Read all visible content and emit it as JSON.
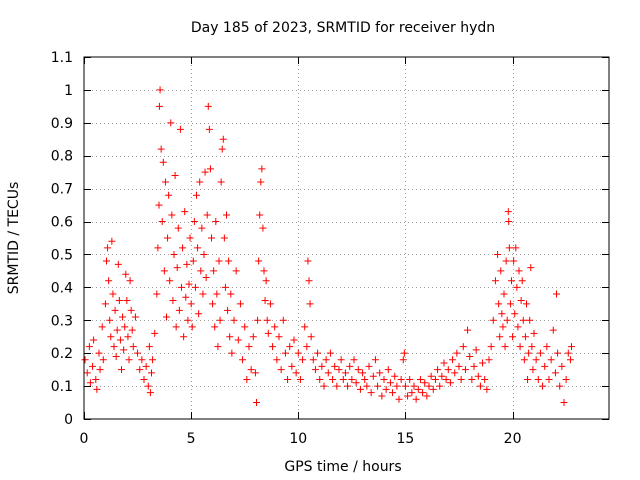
{
  "chart_data": {
    "type": "scatter",
    "title": "Day 185 of 2023, SRMTID for receiver hydn",
    "xlabel": "GPS time / hours",
    "ylabel": "SRMTID / TECUs",
    "xlim": [
      0,
      24.5
    ],
    "ylim": [
      0,
      1.1
    ],
    "xticks": [
      0,
      5,
      10,
      15,
      20
    ],
    "xtick_labels": [
      "0",
      "5",
      "10",
      "15",
      "20"
    ],
    "yticks": [
      0,
      0.1,
      0.2,
      0.3,
      0.4,
      0.5,
      0.6,
      0.7,
      0.8,
      0.9,
      1,
      1.1
    ],
    "ytick_labels": [
      "0",
      "0.1",
      "0.2",
      "0.3",
      "0.4",
      "0.5",
      "0.6",
      "0.7",
      "0.8",
      "0.9",
      "1",
      "1.1"
    ],
    "grid": true,
    "marker": "plus",
    "color": "#ff0000",
    "series": [
      {
        "name": "SRMTID",
        "points": [
          [
            0.05,
            0.18
          ],
          [
            0.15,
            0.14
          ],
          [
            0.25,
            0.22
          ],
          [
            0.3,
            0.11
          ],
          [
            0.4,
            0.16
          ],
          [
            0.45,
            0.24
          ],
          [
            0.55,
            0.12
          ],
          [
            0.6,
            0.09
          ],
          [
            0.7,
            0.2
          ],
          [
            0.75,
            0.15
          ],
          [
            0.85,
            0.28
          ],
          [
            0.9,
            0.18
          ],
          [
            1.0,
            0.35
          ],
          [
            1.05,
            0.48
          ],
          [
            1.1,
            0.52
          ],
          [
            1.15,
            0.42
          ],
          [
            1.2,
            0.3
          ],
          [
            1.25,
            0.25
          ],
          [
            1.3,
            0.54
          ],
          [
            1.35,
            0.38
          ],
          [
            1.4,
            0.22
          ],
          [
            1.45,
            0.33
          ],
          [
            1.5,
            0.19
          ],
          [
            1.55,
            0.27
          ],
          [
            1.6,
            0.47
          ],
          [
            1.65,
            0.36
          ],
          [
            1.7,
            0.24
          ],
          [
            1.75,
            0.15
          ],
          [
            1.8,
            0.31
          ],
          [
            1.85,
            0.21
          ],
          [
            1.9,
            0.28
          ],
          [
            1.95,
            0.44
          ],
          [
            2.0,
            0.36
          ],
          [
            2.05,
            0.25
          ],
          [
            2.1,
            0.18
          ],
          [
            2.15,
            0.42
          ],
          [
            2.2,
            0.33
          ],
          [
            2.25,
            0.27
          ],
          [
            2.3,
            0.22
          ],
          [
            2.4,
            0.31
          ],
          [
            2.5,
            0.2
          ],
          [
            2.6,
            0.15
          ],
          [
            2.7,
            0.18
          ],
          [
            2.8,
            0.12
          ],
          [
            2.9,
            0.16
          ],
          [
            3.0,
            0.1
          ],
          [
            3.05,
            0.22
          ],
          [
            3.1,
            0.08
          ],
          [
            3.15,
            0.14
          ],
          [
            3.2,
            0.18
          ],
          [
            3.3,
            0.26
          ],
          [
            3.4,
            0.38
          ],
          [
            3.45,
            0.52
          ],
          [
            3.5,
            0.65
          ],
          [
            3.52,
            0.95
          ],
          [
            3.55,
            1.0
          ],
          [
            3.6,
            0.82
          ],
          [
            3.65,
            0.6
          ],
          [
            3.7,
            0.78
          ],
          [
            3.75,
            0.45
          ],
          [
            3.8,
            0.72
          ],
          [
            3.85,
            0.31
          ],
          [
            3.9,
            0.55
          ],
          [
            3.95,
            0.68
          ],
          [
            4.0,
            0.42
          ],
          [
            4.05,
            0.9
          ],
          [
            4.1,
            0.62
          ],
          [
            4.15,
            0.36
          ],
          [
            4.2,
            0.5
          ],
          [
            4.25,
            0.74
          ],
          [
            4.3,
            0.28
          ],
          [
            4.35,
            0.46
          ],
          [
            4.4,
            0.58
          ],
          [
            4.45,
            0.33
          ],
          [
            4.5,
            0.88
          ],
          [
            4.55,
            0.4
          ],
          [
            4.6,
            0.52
          ],
          [
            4.65,
            0.25
          ],
          [
            4.7,
            0.63
          ],
          [
            4.75,
            0.37
          ],
          [
            4.8,
            0.47
          ],
          [
            4.85,
            0.3
          ],
          [
            4.9,
            0.41
          ],
          [
            4.95,
            0.55
          ],
          [
            5.0,
            0.35
          ],
          [
            5.05,
            0.28
          ],
          [
            5.1,
            0.48
          ],
          [
            5.15,
            0.6
          ],
          [
            5.2,
            0.4
          ],
          [
            5.25,
            0.68
          ],
          [
            5.3,
            0.52
          ],
          [
            5.35,
            0.32
          ],
          [
            5.4,
            0.72
          ],
          [
            5.45,
            0.45
          ],
          [
            5.5,
            0.58
          ],
          [
            5.55,
            0.38
          ],
          [
            5.6,
            0.5
          ],
          [
            5.65,
            0.75
          ],
          [
            5.7,
            0.43
          ],
          [
            5.75,
            0.62
          ],
          [
            5.8,
            0.95
          ],
          [
            5.85,
            0.88
          ],
          [
            5.9,
            0.76
          ],
          [
            5.95,
            0.55
          ],
          [
            6.0,
            0.35
          ],
          [
            6.05,
            0.45
          ],
          [
            6.1,
            0.28
          ],
          [
            6.15,
            0.6
          ],
          [
            6.2,
            0.38
          ],
          [
            6.25,
            0.22
          ],
          [
            6.3,
            0.48
          ],
          [
            6.35,
            0.3
          ],
          [
            6.4,
            0.72
          ],
          [
            6.45,
            0.82
          ],
          [
            6.5,
            0.85
          ],
          [
            6.55,
            0.55
          ],
          [
            6.6,
            0.4
          ],
          [
            6.65,
            0.62
          ],
          [
            6.7,
            0.33
          ],
          [
            6.75,
            0.48
          ],
          [
            6.8,
            0.25
          ],
          [
            6.85,
            0.38
          ],
          [
            6.9,
            0.2
          ],
          [
            7.0,
            0.3
          ],
          [
            7.1,
            0.45
          ],
          [
            7.2,
            0.24
          ],
          [
            7.3,
            0.35
          ],
          [
            7.4,
            0.18
          ],
          [
            7.5,
            0.28
          ],
          [
            7.6,
            0.12
          ],
          [
            7.7,
            0.22
          ],
          [
            7.8,
            0.15
          ],
          [
            7.9,
            0.25
          ],
          [
            8.0,
            0.14
          ],
          [
            8.05,
            0.05
          ],
          [
            8.1,
            0.3
          ],
          [
            8.15,
            0.48
          ],
          [
            8.2,
            0.62
          ],
          [
            8.25,
            0.72
          ],
          [
            8.3,
            0.76
          ],
          [
            8.35,
            0.58
          ],
          [
            8.4,
            0.45
          ],
          [
            8.45,
            0.36
          ],
          [
            8.5,
            0.42
          ],
          [
            8.55,
            0.3
          ],
          [
            8.6,
            0.26
          ],
          [
            8.7,
            0.35
          ],
          [
            8.8,
            0.22
          ],
          [
            8.9,
            0.28
          ],
          [
            9.0,
            0.18
          ],
          [
            9.1,
            0.25
          ],
          [
            9.2,
            0.15
          ],
          [
            9.3,
            0.3
          ],
          [
            9.4,
            0.2
          ],
          [
            9.5,
            0.12
          ],
          [
            9.6,
            0.22
          ],
          [
            9.7,
            0.16
          ],
          [
            9.8,
            0.24
          ],
          [
            9.9,
            0.14
          ],
          [
            10.0,
            0.2
          ],
          [
            10.1,
            0.12
          ],
          [
            10.2,
            0.18
          ],
          [
            10.3,
            0.28
          ],
          [
            10.4,
            0.22
          ],
          [
            10.45,
            0.48
          ],
          [
            10.5,
            0.42
          ],
          [
            10.55,
            0.35
          ],
          [
            10.6,
            0.25
          ],
          [
            10.7,
            0.18
          ],
          [
            10.8,
            0.15
          ],
          [
            10.9,
            0.2
          ],
          [
            11.0,
            0.12
          ],
          [
            11.1,
            0.16
          ],
          [
            11.2,
            0.1
          ],
          [
            11.3,
            0.18
          ],
          [
            11.4,
            0.14
          ],
          [
            11.5,
            0.2
          ],
          [
            11.6,
            0.12
          ],
          [
            11.7,
            0.16
          ],
          [
            11.8,
            0.1
          ],
          [
            11.9,
            0.15
          ],
          [
            12.0,
            0.18
          ],
          [
            12.1,
            0.12
          ],
          [
            12.2,
            0.14
          ],
          [
            12.3,
            0.1
          ],
          [
            12.4,
            0.16
          ],
          [
            12.5,
            0.12
          ],
          [
            12.6,
            0.18
          ],
          [
            12.7,
            0.11
          ],
          [
            12.8,
            0.15
          ],
          [
            12.9,
            0.09
          ],
          [
            13.0,
            0.14
          ],
          [
            13.1,
            0.12
          ],
          [
            13.2,
            0.1
          ],
          [
            13.3,
            0.16
          ],
          [
            13.4,
            0.08
          ],
          [
            13.5,
            0.13
          ],
          [
            13.6,
            0.18
          ],
          [
            13.7,
            0.1
          ],
          [
            13.8,
            0.14
          ],
          [
            13.9,
            0.07
          ],
          [
            14.0,
            0.12
          ],
          [
            14.1,
            0.09
          ],
          [
            14.2,
            0.15
          ],
          [
            14.3,
            0.11
          ],
          [
            14.4,
            0.08
          ],
          [
            14.5,
            0.13
          ],
          [
            14.6,
            0.1
          ],
          [
            14.7,
            0.06
          ],
          [
            14.8,
            0.12
          ],
          [
            14.9,
            0.18
          ],
          [
            14.95,
            0.2
          ],
          [
            15.0,
            0.1
          ],
          [
            15.1,
            0.07
          ],
          [
            15.2,
            0.12
          ],
          [
            15.3,
            0.08
          ],
          [
            15.4,
            0.1
          ],
          [
            15.5,
            0.06
          ],
          [
            15.6,
            0.09
          ],
          [
            15.7,
            0.12
          ],
          [
            15.8,
            0.08
          ],
          [
            15.9,
            0.11
          ],
          [
            16.0,
            0.07
          ],
          [
            16.1,
            0.1
          ],
          [
            16.2,
            0.13
          ],
          [
            16.3,
            0.09
          ],
          [
            16.4,
            0.12
          ],
          [
            16.5,
            0.15
          ],
          [
            16.6,
            0.1
          ],
          [
            16.7,
            0.13
          ],
          [
            16.8,
            0.17
          ],
          [
            16.9,
            0.12
          ],
          [
            17.0,
            0.15
          ],
          [
            17.1,
            0.11
          ],
          [
            17.2,
            0.18
          ],
          [
            17.3,
            0.14
          ],
          [
            17.4,
            0.2
          ],
          [
            17.5,
            0.16
          ],
          [
            17.6,
            0.12
          ],
          [
            17.7,
            0.22
          ],
          [
            17.8,
            0.15
          ],
          [
            17.9,
            0.27
          ],
          [
            18.0,
            0.19
          ],
          [
            18.1,
            0.12
          ],
          [
            18.2,
            0.16
          ],
          [
            18.3,
            0.21
          ],
          [
            18.4,
            0.13
          ],
          [
            18.5,
            0.1
          ],
          [
            18.6,
            0.17
          ],
          [
            18.7,
            0.12
          ],
          [
            18.8,
            0.09
          ],
          [
            18.9,
            0.18
          ],
          [
            19.0,
            0.22
          ],
          [
            19.1,
            0.3
          ],
          [
            19.2,
            0.42
          ],
          [
            19.3,
            0.5
          ],
          [
            19.35,
            0.35
          ],
          [
            19.4,
            0.25
          ],
          [
            19.45,
            0.45
          ],
          [
            19.5,
            0.32
          ],
          [
            19.55,
            0.28
          ],
          [
            19.6,
            0.38
          ],
          [
            19.65,
            0.22
          ],
          [
            19.7,
            0.48
          ],
          [
            19.75,
            0.3
          ],
          [
            19.8,
            0.63
          ],
          [
            19.82,
            0.6
          ],
          [
            19.85,
            0.52
          ],
          [
            19.9,
            0.35
          ],
          [
            19.95,
            0.42
          ],
          [
            20.0,
            0.25
          ],
          [
            20.05,
            0.48
          ],
          [
            20.1,
            0.32
          ],
          [
            20.15,
            0.52
          ],
          [
            20.2,
            0.4
          ],
          [
            20.25,
            0.28
          ],
          [
            20.3,
            0.45
          ],
          [
            20.35,
            0.22
          ],
          [
            20.4,
            0.36
          ],
          [
            20.45,
            0.42
          ],
          [
            20.5,
            0.3
          ],
          [
            20.55,
            0.18
          ],
          [
            20.6,
            0.25
          ],
          [
            20.65,
            0.35
          ],
          [
            20.7,
            0.12
          ],
          [
            20.75,
            0.2
          ],
          [
            20.8,
            0.3
          ],
          [
            20.85,
            0.46
          ],
          [
            20.9,
            0.22
          ],
          [
            20.95,
            0.15
          ],
          [
            21.0,
            0.26
          ],
          [
            21.1,
            0.18
          ],
          [
            21.2,
            0.12
          ],
          [
            21.3,
            0.2
          ],
          [
            21.4,
            0.1
          ],
          [
            21.5,
            0.16
          ],
          [
            21.6,
            0.22
          ],
          [
            21.7,
            0.12
          ],
          [
            21.8,
            0.18
          ],
          [
            21.9,
            0.27
          ],
          [
            22.0,
            0.14
          ],
          [
            22.05,
            0.38
          ],
          [
            22.1,
            0.2
          ],
          [
            22.2,
            0.1
          ],
          [
            22.3,
            0.16
          ],
          [
            22.4,
            0.05
          ],
          [
            22.5,
            0.12
          ],
          [
            22.6,
            0.2
          ],
          [
            22.7,
            0.18
          ],
          [
            22.75,
            0.22
          ]
        ]
      }
    ]
  }
}
